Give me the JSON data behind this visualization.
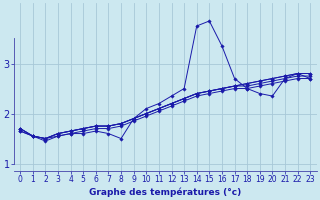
{
  "xlabel": "Graphe des températures (°c)",
  "background_color": "#cce8f0",
  "grid_color": "#a8c8d8",
  "line_color": "#1a1aaa",
  "series": [
    [
      1.7,
      1.55,
      1.5,
      1.55,
      1.6,
      1.6,
      1.65,
      1.6,
      1.5,
      1.9,
      2.1,
      2.2,
      2.35,
      2.5,
      3.75,
      3.85,
      3.35,
      2.7,
      2.5,
      2.4,
      2.35,
      2.7,
      2.8,
      2.7
    ],
    [
      1.65,
      1.55,
      1.5,
      1.6,
      1.65,
      1.7,
      1.75,
      1.75,
      1.8,
      1.9,
      2.0,
      2.1,
      2.2,
      2.3,
      2.4,
      2.45,
      2.5,
      2.55,
      2.55,
      2.6,
      2.65,
      2.7,
      2.75,
      2.75
    ],
    [
      1.65,
      1.55,
      1.45,
      1.55,
      1.6,
      1.65,
      1.7,
      1.7,
      1.75,
      1.85,
      1.95,
      2.05,
      2.15,
      2.25,
      2.35,
      2.4,
      2.45,
      2.5,
      2.5,
      2.55,
      2.6,
      2.65,
      2.7,
      2.7
    ],
    [
      1.7,
      1.55,
      1.5,
      1.6,
      1.65,
      1.7,
      1.75,
      1.75,
      1.8,
      1.9,
      2.0,
      2.1,
      2.2,
      2.3,
      2.4,
      2.45,
      2.5,
      2.55,
      2.6,
      2.65,
      2.7,
      2.75,
      2.8,
      2.8
    ],
    [
      1.7,
      1.55,
      1.5,
      1.6,
      1.65,
      1.7,
      1.75,
      1.75,
      1.8,
      1.9,
      2.0,
      2.1,
      2.2,
      2.3,
      2.4,
      2.45,
      2.5,
      2.55,
      2.6,
      2.65,
      2.7,
      2.75,
      2.8,
      2.8
    ]
  ],
  "xlim": [
    -0.5,
    23.5
  ],
  "ylim": [
    0.85,
    4.2
  ],
  "xticks": [
    0,
    1,
    2,
    3,
    4,
    5,
    6,
    7,
    8,
    9,
    10,
    11,
    12,
    13,
    14,
    15,
    16,
    17,
    18,
    19,
    20,
    21,
    22,
    23
  ],
  "yticks": [
    1,
    2,
    3
  ],
  "marker": "D",
  "markersize": 1.8,
  "linewidth": 0.7
}
